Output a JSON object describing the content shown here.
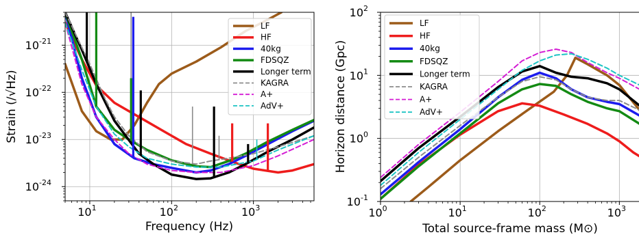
{
  "chart_data": [
    {
      "type": "line",
      "xlabel": "Frequency (Hz)",
      "ylabel": "Strain (/√Hz)",
      "xscale": "log",
      "yscale": "log",
      "xlim": [
        5,
        5500
      ],
      "ylim": [
        5e-25,
        5e-21
      ],
      "x_ticks": [
        {
          "value": 10,
          "label": "10^1"
        },
        {
          "value": 100,
          "label": "10^2"
        },
        {
          "value": 1000,
          "label": "10^3"
        }
      ],
      "y_ticks": [
        {
          "value": 1e-24,
          "label": "10^-24"
        },
        {
          "value": 1e-23,
          "label": "10^-23"
        },
        {
          "value": 1e-22,
          "label": "10^-22"
        },
        {
          "value": 1e-21,
          "label": "10^-21"
        }
      ],
      "grid": true,
      "legend_position": "upper-right",
      "series": [
        {
          "name": "LF",
          "color": "#9c5b1a",
          "dash": "solid",
          "width": 3.5,
          "points": [
            [
              5,
              4e-22
            ],
            [
              8,
              4e-23
            ],
            [
              12,
              1.5e-23
            ],
            [
              18,
              1e-23
            ],
            [
              25,
              1e-23
            ],
            [
              35,
              2e-23
            ],
            [
              50,
              6e-23
            ],
            [
              70,
              1.5e-22
            ],
            [
              100,
              2.5e-22
            ],
            [
              200,
              4.5e-22
            ],
            [
              400,
              9e-22
            ],
            [
              800,
              2e-21
            ],
            [
              1500,
              3.5e-21
            ],
            [
              2200,
              5e-21
            ]
          ]
        },
        {
          "name": "HF",
          "color": "#ee1c1c",
          "dash": "solid",
          "width": 3.5,
          "points": [
            [
              5,
              3e-21
            ],
            [
              8,
              5e-22
            ],
            [
              12,
              1.4e-22
            ],
            [
              20,
              6e-23
            ],
            [
              40,
              3e-23
            ],
            [
              80,
              1.5e-23
            ],
            [
              150,
              8e-24
            ],
            [
              300,
              5e-24
            ],
            [
              600,
              3.2e-24
            ],
            [
              1000,
              2.4e-24
            ],
            [
              2000,
              2e-24
            ],
            [
              3000,
              2.2e-24
            ],
            [
              5500,
              3e-24
            ]
          ]
        },
        {
          "name": "40kg",
          "color": "#1c1cee",
          "dash": "solid",
          "width": 3.5,
          "points": [
            [
              5,
              5e-21
            ],
            [
              8,
              2e-22
            ],
            [
              12,
              3e-23
            ],
            [
              20,
              8e-24
            ],
            [
              35,
              4e-24
            ],
            [
              60,
              3e-24
            ],
            [
              100,
              2.5e-24
            ],
            [
              200,
              2e-24
            ],
            [
              300,
              2.2e-24
            ],
            [
              500,
              3e-24
            ],
            [
              800,
              4.5e-24
            ],
            [
              1500,
              8e-24
            ],
            [
              3000,
              1.5e-23
            ],
            [
              5500,
              2.5e-23
            ]
          ]
        },
        {
          "name": "FDSQZ",
          "color": "#138a13",
          "dash": "solid",
          "width": 3.5,
          "points": [
            [
              5,
              5e-21
            ],
            [
              8,
              5e-22
            ],
            [
              12,
              5e-23
            ],
            [
              20,
              1.6e-23
            ],
            [
              30,
              1e-23
            ],
            [
              50,
              6e-24
            ],
            [
              100,
              3.6e-24
            ],
            [
              200,
              2.7e-24
            ],
            [
              300,
              2.6e-24
            ],
            [
              500,
              3.5e-24
            ],
            [
              800,
              5e-24
            ],
            [
              1500,
              9e-24
            ],
            [
              3000,
              1.6e-23
            ],
            [
              5500,
              2.6e-23
            ]
          ]
        },
        {
          "name": "Longer term",
          "color": "#000000",
          "dash": "solid",
          "width": 3.5,
          "points": [
            [
              5,
              5e-21
            ],
            [
              8,
              8e-22
            ],
            [
              12,
              1.5e-22
            ],
            [
              20,
              2.5e-23
            ],
            [
              40,
              5e-24
            ],
            [
              60,
              3e-24
            ],
            [
              100,
              1.8e-24
            ],
            [
              200,
              1.45e-24
            ],
            [
              300,
              1.5e-24
            ],
            [
              500,
              2e-24
            ],
            [
              800,
              3e-24
            ],
            [
              1500,
              5.5e-24
            ],
            [
              3000,
              1e-23
            ],
            [
              5500,
              1.8e-23
            ]
          ]
        },
        {
          "name": "KAGRA",
          "color": "#8c8c8c",
          "dash": "7,4",
          "width": 2,
          "points": [
            [
              5,
              5e-21
            ],
            [
              10,
              4e-22
            ],
            [
              15,
              8e-23
            ],
            [
              20,
              3e-23
            ],
            [
              30,
              1.2e-23
            ],
            [
              50,
              5.5e-24
            ],
            [
              100,
              3.5e-24
            ],
            [
              200,
              3e-24
            ],
            [
              300,
              3.5e-24
            ],
            [
              500,
              4e-24
            ],
            [
              1000,
              5e-24
            ],
            [
              2000,
              7e-24
            ],
            [
              5500,
              1.2e-23
            ]
          ]
        },
        {
          "name": "A+",
          "color": "#d41cd4",
          "dash": "7,4",
          "width": 2,
          "points": [
            [
              5,
              3e-21
            ],
            [
              8,
              1.5e-22
            ],
            [
              12,
              3e-23
            ],
            [
              20,
              1e-23
            ],
            [
              30,
              5e-24
            ],
            [
              50,
              3e-24
            ],
            [
              100,
              2.2e-24
            ],
            [
              200,
              2e-24
            ],
            [
              400,
              2e-24
            ],
            [
              1000,
              2.8e-24
            ],
            [
              2000,
              4.5e-24
            ],
            [
              5500,
              1e-23
            ]
          ]
        },
        {
          "name": "AdV+",
          "color": "#1cc4c4",
          "dash": "7,4",
          "width": 2,
          "points": [
            [
              5,
              3e-21
            ],
            [
              8,
              3e-22
            ],
            [
              12,
              5e-23
            ],
            [
              20,
              1.3e-23
            ],
            [
              30,
              7e-24
            ],
            [
              50,
              4e-24
            ],
            [
              100,
              3e-24
            ],
            [
              200,
              2.6e-24
            ],
            [
              400,
              2.6e-24
            ],
            [
              1000,
              3.5e-24
            ],
            [
              2000,
              6e-24
            ],
            [
              5500,
              1.2e-23
            ]
          ]
        }
      ],
      "spikes": [
        {
          "series": "KAGRA",
          "x": 32,
          "y": 5e-21,
          "width": 1.6
        },
        {
          "series": "KAGRA",
          "x": 180,
          "y": 5e-23,
          "width": 1.6
        },
        {
          "series": "KAGRA",
          "x": 380,
          "y": 1.2e-23,
          "width": 1.6
        },
        {
          "series": "FDSQZ",
          "x": 12,
          "y": 5e-21,
          "width": 3.2
        },
        {
          "series": "FDSQZ",
          "x": 32,
          "y": 2e-22,
          "width": 3.2
        },
        {
          "series": "40kg",
          "x": 34,
          "y": 4e-21,
          "width": 3.2
        },
        {
          "series": "Longer term",
          "x": 9.2,
          "y": 5e-21,
          "width": 3.2
        },
        {
          "series": "Longer term",
          "x": 42,
          "y": 1.1e-22,
          "width": 3.2
        },
        {
          "series": "Longer term",
          "x": 330,
          "y": 5e-23,
          "width": 3.2
        },
        {
          "series": "Longer term",
          "x": 860,
          "y": 8e-24,
          "width": 3.2
        },
        {
          "series": "HF",
          "x": 550,
          "y": 2.2e-23,
          "width": 3.2
        },
        {
          "series": "HF",
          "x": 1500,
          "y": 2.2e-23,
          "width": 3.2
        },
        {
          "series": "FDSQZ",
          "x": 2900,
          "y": 1.5e-23,
          "width": 3.2
        },
        {
          "series": "AdV+",
          "x": 1100,
          "y": 1e-23,
          "width": 1.6
        }
      ]
    },
    {
      "type": "line",
      "xlabel": "Total source-frame mass (M⊙)",
      "ylabel": "Horizon distance (Gpc)",
      "xscale": "log",
      "yscale": "log",
      "xlim": [
        1,
        1800
      ],
      "ylim": [
        0.1,
        100
      ],
      "x_ticks": [
        {
          "value": 1,
          "label": "10^0"
        },
        {
          "value": 10,
          "label": "10^1"
        },
        {
          "value": 100,
          "label": "10^2"
        },
        {
          "value": 1000,
          "label": "10^3"
        }
      ],
      "y_ticks": [
        {
          "value": 0.1,
          "label": "10^-1"
        },
        {
          "value": 1,
          "label": "10^0"
        },
        {
          "value": 10,
          "label": "10^1"
        },
        {
          "value": 100,
          "label": "10^2"
        }
      ],
      "grid": true,
      "legend_position": "upper-left",
      "series": [
        {
          "name": "LF",
          "color": "#9c5b1a",
          "dash": "solid",
          "width": 3.5,
          "points": [
            [
              2.4,
              0.1
            ],
            [
              4,
              0.17
            ],
            [
              10,
              0.45
            ],
            [
              30,
              1.3
            ],
            [
              70,
              2.8
            ],
            [
              150,
              5.5
            ],
            [
              220,
              10
            ],
            [
              280,
              19
            ],
            [
              400,
              15
            ],
            [
              700,
              10
            ],
            [
              1000,
              7
            ],
            [
              1800,
              2.8
            ]
          ]
        },
        {
          "name": "HF",
          "color": "#ee1c1c",
          "dash": "solid",
          "width": 3.5,
          "points": [
            [
              1,
              0.11
            ],
            [
              3,
              0.38
            ],
            [
              10,
              1.15
            ],
            [
              30,
              2.7
            ],
            [
              60,
              3.6
            ],
            [
              100,
              3.3
            ],
            [
              200,
              2.4
            ],
            [
              400,
              1.7
            ],
            [
              700,
              1.2
            ],
            [
              1000,
              0.9
            ],
            [
              1500,
              0.6
            ],
            [
              1800,
              0.52
            ]
          ]
        },
        {
          "name": "40kg",
          "color": "#1c1cee",
          "dash": "solid",
          "width": 3.5,
          "points": [
            [
              1,
              0.13
            ],
            [
              3,
              0.42
            ],
            [
              10,
              1.4
            ],
            [
              30,
              4.5
            ],
            [
              60,
              8.5
            ],
            [
              100,
              11
            ],
            [
              160,
              9
            ],
            [
              250,
              6
            ],
            [
              400,
              4.5
            ],
            [
              700,
              3.8
            ],
            [
              1000,
              3.5
            ],
            [
              1800,
              2.3
            ]
          ]
        },
        {
          "name": "FDSQZ",
          "color": "#138a13",
          "dash": "solid",
          "width": 3.5,
          "points": [
            [
              1,
              0.11
            ],
            [
              3,
              0.36
            ],
            [
              10,
              1.2
            ],
            [
              30,
              3.6
            ],
            [
              60,
              6
            ],
            [
              100,
              7.3
            ],
            [
              160,
              6.8
            ],
            [
              250,
              5
            ],
            [
              400,
              3.8
            ],
            [
              700,
              3
            ],
            [
              1000,
              2.7
            ],
            [
              1800,
              1.7
            ]
          ]
        },
        {
          "name": "Longer term",
          "color": "#000000",
          "dash": "solid",
          "width": 3.5,
          "points": [
            [
              1,
              0.21
            ],
            [
              3,
              0.7
            ],
            [
              10,
              2.2
            ],
            [
              30,
              6.5
            ],
            [
              60,
              11.5
            ],
            [
              100,
              14
            ],
            [
              160,
              11
            ],
            [
              250,
              9.5
            ],
            [
              400,
              9
            ],
            [
              700,
              7.5
            ],
            [
              1000,
              6
            ],
            [
              1800,
              3.3
            ]
          ]
        },
        {
          "name": "KAGRA",
          "color": "#8c8c8c",
          "dash": "7,4",
          "width": 2,
          "points": [
            [
              1,
              0.16
            ],
            [
              3,
              0.5
            ],
            [
              10,
              1.6
            ],
            [
              30,
              4.5
            ],
            [
              60,
              8
            ],
            [
              100,
              9.5
            ],
            [
              160,
              8.5
            ],
            [
              250,
              6
            ],
            [
              400,
              4.5
            ],
            [
              700,
              4
            ],
            [
              1000,
              4
            ],
            [
              1800,
              2.8
            ]
          ]
        },
        {
          "name": "A+",
          "color": "#d41cd4",
          "dash": "7,4",
          "width": 2,
          "points": [
            [
              1,
              0.24
            ],
            [
              3,
              0.8
            ],
            [
              10,
              2.6
            ],
            [
              30,
              8
            ],
            [
              60,
              17
            ],
            [
              100,
              23
            ],
            [
              160,
              26
            ],
            [
              250,
              23
            ],
            [
              400,
              16
            ],
            [
              700,
              11
            ],
            [
              1000,
              9
            ],
            [
              1800,
              6
            ]
          ]
        },
        {
          "name": "AdV+",
          "color": "#1cc4c4",
          "dash": "7,4",
          "width": 2,
          "points": [
            [
              1,
              0.18
            ],
            [
              3,
              0.6
            ],
            [
              10,
              2
            ],
            [
              30,
              6
            ],
            [
              60,
              12
            ],
            [
              100,
              17
            ],
            [
              160,
              21
            ],
            [
              250,
              22
            ],
            [
              400,
              18
            ],
            [
              700,
              13
            ],
            [
              1000,
              10
            ],
            [
              1800,
              7
            ]
          ]
        }
      ]
    }
  ]
}
